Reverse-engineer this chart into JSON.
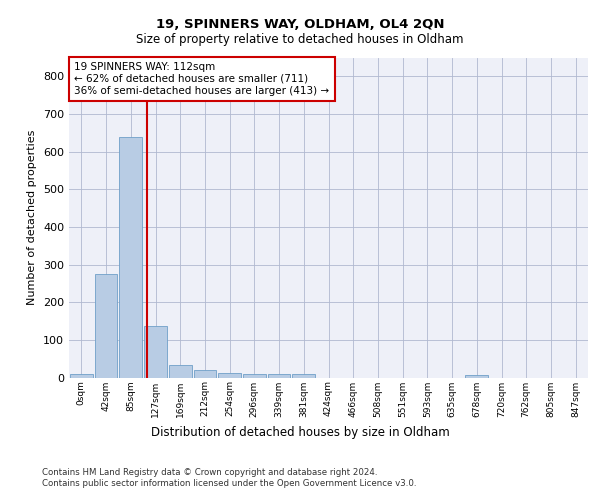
{
  "title1": "19, SPINNERS WAY, OLDHAM, OL4 2QN",
  "title2": "Size of property relative to detached houses in Oldham",
  "xlabel": "Distribution of detached houses by size in Oldham",
  "ylabel": "Number of detached properties",
  "footnote": "Contains HM Land Registry data © Crown copyright and database right 2024.\nContains public sector information licensed under the Open Government Licence v3.0.",
  "bin_labels": [
    "0sqm",
    "42sqm",
    "85sqm",
    "127sqm",
    "169sqm",
    "212sqm",
    "254sqm",
    "296sqm",
    "339sqm",
    "381sqm",
    "424sqm",
    "466sqm",
    "508sqm",
    "551sqm",
    "593sqm",
    "635sqm",
    "678sqm",
    "720sqm",
    "762sqm",
    "805sqm",
    "847sqm"
  ],
  "bar_values": [
    8,
    275,
    638,
    138,
    34,
    19,
    12,
    10,
    10,
    9,
    0,
    0,
    0,
    0,
    0,
    0,
    7,
    0,
    0,
    0,
    0
  ],
  "bar_color": "#b8cce4",
  "bar_edge_color": "#6fa0c8",
  "grid_color": "#b0b8d0",
  "bg_color": "#eef0f8",
  "vline_x": 2.64,
  "vline_color": "#cc0000",
  "annotation_text": "19 SPINNERS WAY: 112sqm\n← 62% of detached houses are smaller (711)\n36% of semi-detached houses are larger (413) →",
  "annotation_box_color": "#ffffff",
  "annotation_box_edge": "#cc0000",
  "ylim": [
    0,
    850
  ],
  "yticks": [
    0,
    100,
    200,
    300,
    400,
    500,
    600,
    700,
    800
  ]
}
